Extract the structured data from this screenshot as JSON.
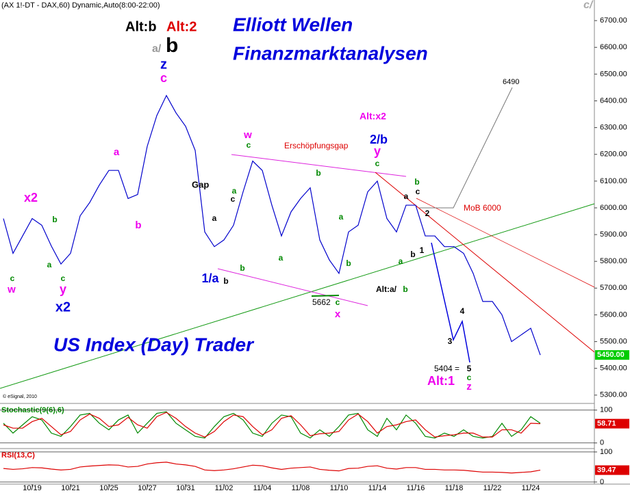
{
  "header": {
    "symbol": "(AX 1!-DT - DAX,60) Dynamic,Auto(8:00-22:00)",
    "corner": "c/",
    "copyright": "© eSignal, 2010"
  },
  "annotations": [
    "Alt:b",
    "Alt:2",
    "a/",
    "b",
    "z",
    "c",
    "Elliott Wellen",
    "Finanzmarktanalysen",
    "x2",
    "b",
    "a",
    "c",
    "w",
    "c",
    "y",
    "x2",
    "a",
    "b",
    "Gap",
    "a",
    "c",
    "b",
    "1/a",
    "w",
    "c",
    "a",
    "b",
    "a",
    "b",
    "a",
    "b",
    "5662",
    "c",
    "x",
    "Erschöpfungsgap",
    "Alt:x2",
    "2/b",
    "y",
    "c",
    "a",
    "c",
    "b",
    "2",
    "b",
    "1",
    "a",
    "Alt:a/",
    "b",
    "3",
    "4",
    "5404 =",
    "5",
    "c",
    "z",
    "Alt:1",
    "6490",
    "MoB 6000",
    "US Index (Day) Trader"
  ],
  "chart_data": [
    {
      "type": "line",
      "color": "#0000cc",
      "categories": [
        null,
        null,
        null,
        "10/19",
        null,
        null,
        null,
        "10/21",
        null,
        null,
        null,
        "10/25",
        null,
        null,
        null,
        "10/27",
        null,
        null,
        null,
        "10/31",
        null,
        null,
        null,
        "11/02",
        null,
        null,
        null,
        "11/04",
        null,
        null,
        null,
        "11/08",
        null,
        null,
        null,
        "11/10",
        null,
        null,
        null,
        "11/14",
        null,
        null,
        null,
        "11/16",
        null,
        null,
        null,
        "11/18",
        null,
        null,
        null,
        "11/22",
        null,
        null,
        null,
        "11/24",
        null
      ],
      "values": [
        5960,
        5830,
        5895,
        5960,
        5935,
        5857,
        5790,
        5830,
        5970,
        6020,
        6085,
        6140,
        6140,
        6035,
        6050,
        6230,
        6345,
        6420,
        6355,
        6305,
        6215,
        5910,
        5855,
        5880,
        5935,
        6060,
        6175,
        6140,
        6010,
        5895,
        5985,
        6035,
        6075,
        5880,
        5805,
        5755,
        5910,
        5935,
        6060,
        6100,
        5960,
        5910,
        6010,
        6010,
        5895,
        5895,
        5855,
        5855,
        5830,
        5755,
        5650,
        5650,
        5600,
        5500,
        5525,
        5550,
        5450
      ],
      "value_labels": [
        null,
        null,
        null,
        null,
        null,
        null,
        null,
        null,
        null,
        null,
        null,
        null,
        null,
        null,
        null,
        null,
        null,
        null,
        null,
        null,
        null,
        null,
        null,
        null,
        null,
        null,
        null,
        null,
        null,
        null,
        null,
        null,
        null,
        null,
        null,
        null,
        null,
        null,
        null,
        null,
        null,
        null,
        null,
        null,
        null,
        null,
        null,
        null,
        null,
        null,
        null,
        null,
        null,
        null,
        null,
        null,
        "5450.00"
      ],
      "label_color": "#00cc00",
      "ylim": [
        5274,
        6777
      ],
      "yticks": [
        {
          "value": 5300,
          "label": "5300.00"
        },
        {
          "value": 5400,
          "label": "5400.00"
        },
        {
          "value": 5500,
          "label": "5500.00"
        },
        {
          "value": 5600,
          "label": "5600.00"
        },
        {
          "value": 5700,
          "label": "5700.00"
        },
        {
          "value": 5800,
          "label": "5800.00"
        },
        {
          "value": 5900,
          "label": "5900.00"
        },
        {
          "value": 6000,
          "label": "6000.00"
        },
        {
          "value": 6100,
          "label": "6100.00"
        },
        {
          "value": 6200,
          "label": "6200.00"
        },
        {
          "value": 6300,
          "label": "6300.00"
        },
        {
          "value": 6400,
          "label": "6400.00"
        },
        {
          "value": 6500,
          "label": "6500.00"
        },
        {
          "value": 6600,
          "label": "6600.00"
        },
        {
          "value": 6700,
          "label": "6700.00"
        }
      ]
    },
    {
      "type": "line",
      "title": "Stochastic(9(6),6)",
      "ylim": [
        -15,
        112
      ],
      "yticks": [
        0,
        100
      ],
      "label_color": "#dd0000",
      "series": [
        {
          "color": "#008800",
          "values": [
            60,
            30,
            55,
            80,
            70,
            30,
            20,
            50,
            85,
            90,
            60,
            40,
            70,
            85,
            30,
            60,
            90,
            95,
            60,
            40,
            20,
            15,
            50,
            80,
            90,
            70,
            30,
            20,
            60,
            85,
            80,
            30,
            15,
            40,
            20,
            50,
            85,
            90,
            40,
            20,
            75,
            40,
            85,
            60,
            20,
            15,
            30,
            20,
            40,
            20,
            15,
            20,
            60,
            20,
            40,
            80,
            60
          ]
        },
        {
          "color": "#dd0000",
          "values": [
            55,
            45,
            45,
            65,
            75,
            50,
            25,
            35,
            70,
            88,
            75,
            50,
            55,
            78,
            55,
            45,
            80,
            93,
            75,
            50,
            30,
            18,
            35,
            65,
            85,
            80,
            50,
            25,
            40,
            75,
            83,
            55,
            22,
            28,
            30,
            35,
            70,
            88,
            65,
            30,
            50,
            55,
            65,
            70,
            40,
            18,
            22,
            25,
            30,
            30,
            18,
            18,
            40,
            40,
            30,
            60,
            58.71
          ],
          "value_labels": [
            null,
            null,
            null,
            null,
            null,
            null,
            null,
            null,
            null,
            null,
            null,
            null,
            null,
            null,
            null,
            null,
            null,
            null,
            null,
            null,
            null,
            null,
            null,
            null,
            null,
            null,
            null,
            null,
            null,
            null,
            null,
            null,
            null,
            null,
            null,
            null,
            null,
            null,
            null,
            null,
            null,
            null,
            null,
            null,
            null,
            null,
            null,
            null,
            null,
            null,
            null,
            null,
            null,
            null,
            null,
            null,
            "58.71"
          ]
        }
      ]
    },
    {
      "type": "line",
      "title": "RSI(13,C)",
      "ylim": [
        -7,
        109
      ],
      "yticks": [
        0,
        100
      ],
      "label_color": "#dd0000",
      "series": [
        {
          "color": "#dd0000",
          "values": [
            45,
            42,
            44,
            48,
            47,
            43,
            40,
            42,
            50,
            53,
            55,
            57,
            56,
            50,
            52,
            60,
            64,
            66,
            60,
            57,
            52,
            40,
            38,
            40,
            44,
            50,
            56,
            54,
            47,
            42,
            46,
            48,
            50,
            42,
            39,
            37,
            45,
            46,
            52,
            54,
            46,
            43,
            48,
            48,
            42,
            42,
            40,
            40,
            39,
            36,
            33,
            33,
            32,
            30,
            32,
            34,
            39.47
          ],
          "value_labels": [
            null,
            null,
            null,
            null,
            null,
            null,
            null,
            null,
            null,
            null,
            null,
            null,
            null,
            null,
            null,
            null,
            null,
            null,
            null,
            null,
            null,
            null,
            null,
            null,
            null,
            null,
            null,
            null,
            null,
            null,
            null,
            null,
            null,
            null,
            null,
            null,
            null,
            null,
            null,
            null,
            null,
            null,
            null,
            null,
            null,
            null,
            null,
            null,
            null,
            null,
            null,
            null,
            null,
            null,
            null,
            null,
            "39.47"
          ]
        }
      ]
    }
  ]
}
